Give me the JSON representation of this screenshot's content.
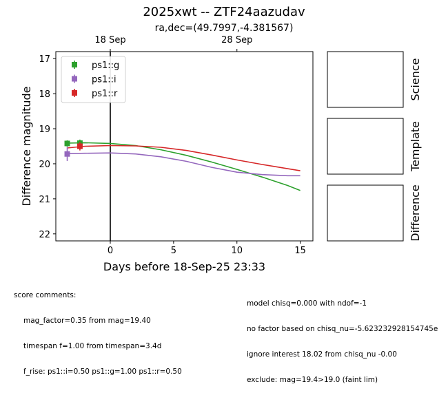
{
  "title": "2025xwt -- ZTF24aazudav",
  "subtitle": "ra,dec=(49.7997,-4.381567)",
  "chart_data": {
    "type": "line",
    "xlabel": "Days before 18-Sep-25 23:33",
    "ylabel": "Difference magnitude",
    "xlim": [
      -4.3,
      16
    ],
    "ylim": [
      22.2,
      16.8
    ],
    "y_inverted": true,
    "xticks": [
      0,
      5,
      10,
      15
    ],
    "yticks": [
      17,
      18,
      19,
      20,
      21,
      22
    ],
    "top_axis_ticks": [
      {
        "x": 0,
        "label": "18 Sep"
      },
      {
        "x": 10,
        "label": "28 Sep"
      }
    ],
    "vline_x": 0,
    "legend_position": "upper-left",
    "series": [
      {
        "name": "ps1::g",
        "color": "#2ca02c",
        "points": [
          {
            "x": -3.4,
            "y": 19.42,
            "err": 0.09
          },
          {
            "x": -2.4,
            "y": 19.41,
            "err": 0.1
          }
        ],
        "curve": [
          [
            -3.4,
            19.41
          ],
          [
            -2,
            19.4
          ],
          [
            0,
            19.42
          ],
          [
            2,
            19.48
          ],
          [
            4,
            19.6
          ],
          [
            6,
            19.76
          ],
          [
            8,
            19.95
          ],
          [
            10,
            20.16
          ],
          [
            12,
            20.38
          ],
          [
            14,
            20.62
          ],
          [
            15,
            20.76
          ]
        ]
      },
      {
        "name": "ps1::i",
        "color": "#9467bd",
        "points": [
          {
            "x": -3.4,
            "y": 19.72,
            "err": 0.2
          }
        ],
        "curve": [
          [
            -3.4,
            19.71
          ],
          [
            -2,
            19.7
          ],
          [
            0,
            19.69
          ],
          [
            2,
            19.72
          ],
          [
            4,
            19.8
          ],
          [
            6,
            19.93
          ],
          [
            8,
            20.1
          ],
          [
            10,
            20.24
          ],
          [
            12,
            20.31
          ],
          [
            14,
            20.34
          ],
          [
            15,
            20.34
          ]
        ]
      },
      {
        "name": "ps1::r",
        "color": "#d62728",
        "points": [
          {
            "x": -2.4,
            "y": 19.5,
            "err": 0.12
          }
        ],
        "curve": [
          [
            -3.4,
            19.55
          ],
          [
            -2,
            19.5
          ],
          [
            0,
            19.48
          ],
          [
            2,
            19.49
          ],
          [
            4,
            19.53
          ],
          [
            6,
            19.62
          ],
          [
            8,
            19.75
          ],
          [
            10,
            19.89
          ],
          [
            12,
            20.02
          ],
          [
            14,
            20.14
          ],
          [
            15,
            20.2
          ]
        ]
      }
    ]
  },
  "cutouts": [
    {
      "label": "Science"
    },
    {
      "label": "Template"
    },
    {
      "label": "Difference"
    }
  ],
  "comments_left": {
    "heading": "score comments:",
    "lines": [
      "mag_factor=0.35 from mag=19.40",
      "timespan f=1.00 from timespan=3.4d",
      "f_rise: ps1::i=0.50 ps1::g=1.00 ps1::r=0.50"
    ]
  },
  "comments_right": {
    "lines": [
      "model chisq=0.000 with ndof=-1",
      "no factor based on chisq_nu=-5.623232928154745e",
      "ignore interest 18.02 from chisq_nu -0.00",
      "exclude: mag=19.4>19.0 (faint lim)"
    ]
  }
}
